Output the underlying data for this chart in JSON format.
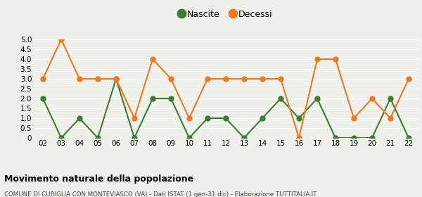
{
  "years": [
    "02",
    "03",
    "04",
    "05",
    "06",
    "07",
    "08",
    "09",
    "10",
    "11",
    "12",
    "13",
    "14",
    "15",
    "16",
    "17",
    "18",
    "19",
    "20",
    "21",
    "22"
  ],
  "nascite": [
    2,
    0,
    1,
    0,
    3,
    0,
    2,
    2,
    0,
    1,
    1,
    0,
    1,
    2,
    1,
    2,
    0,
    0,
    0,
    2,
    0
  ],
  "decessi": [
    3,
    5,
    3,
    3,
    3,
    1,
    4,
    3,
    1,
    3,
    3,
    3,
    3,
    3,
    0,
    4,
    4,
    1,
    2,
    1,
    3
  ],
  "nascite_color": "#3a7d2c",
  "decessi_color": "#f07820",
  "background_color": "#f0f0eb",
  "grid_color": "#ffffff",
  "ylim": [
    0,
    5.0
  ],
  "title": "Movimento naturale della popolazione",
  "subtitle": "COMUNE DI CURIGLIA CON MONTEVIASCO (VA) - Dati ISTAT (1 gen-31 dic) - Elaborazione TUTTITALIA.IT",
  "legend_nascite": "Nascite",
  "legend_decessi": "Decessi",
  "marker_size": 5,
  "line_width": 1.5
}
